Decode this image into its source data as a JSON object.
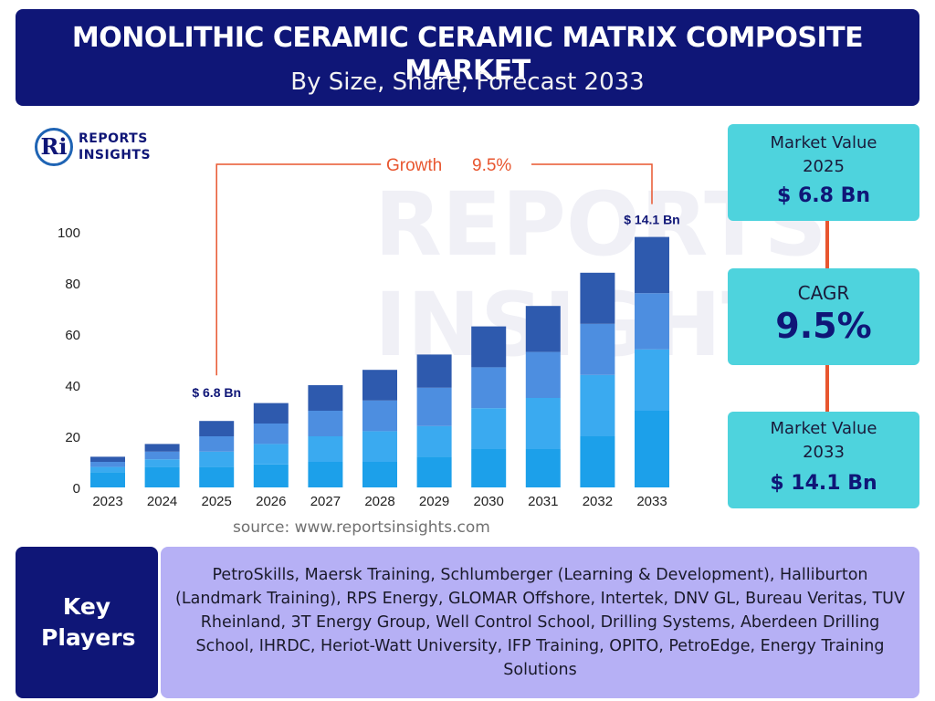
{
  "header": {
    "title": "MONOLITHIC CERAMIC CERAMIC MATRIX COMPOSITE MARKET",
    "subtitle": "By Size, Share, Forecast 2033"
  },
  "logo": {
    "mark": "Ri",
    "line1": "REPORTS",
    "line2": "INSIGHTS"
  },
  "watermark": {
    "line1": "REPORTS",
    "line2": "INSIGHTS"
  },
  "chart_data": {
    "type": "bar",
    "stacked": true,
    "categories": [
      "2023",
      "2024",
      "2025",
      "2026",
      "2027",
      "2028",
      "2029",
      "2030",
      "2031",
      "2032",
      "2033"
    ],
    "yticks": [
      0,
      20,
      40,
      60,
      80,
      100
    ],
    "ylim": [
      0,
      100
    ],
    "grid": false,
    "totals": [
      12,
      17,
      26,
      33,
      40,
      46,
      52,
      63,
      71,
      84,
      98
    ],
    "series": [
      {
        "values": [
          6,
          8,
          8,
          9,
          10,
          10,
          12,
          15,
          15,
          20,
          30
        ],
        "color": "#1ca0ea"
      },
      {
        "values": [
          2,
          3,
          6,
          8,
          10,
          12,
          12,
          16,
          20,
          24,
          24
        ],
        "color": "#3aaaf0"
      },
      {
        "values": [
          2,
          3,
          6,
          8,
          10,
          12,
          15,
          16,
          18,
          20,
          22
        ],
        "color": "#4d8ee0"
      },
      {
        "values": [
          2,
          3,
          6,
          8,
          10,
          12,
          13,
          16,
          18,
          20,
          22
        ],
        "color": "#2e5aae"
      }
    ],
    "annotations": [
      {
        "category": "2025",
        "text": "$ 6.8 Bn"
      },
      {
        "category": "2033",
        "text": "$ 14.1 Bn"
      }
    ],
    "growth_label": "Growth",
    "growth_value": "9.5%",
    "accent_color": "#e8562f"
  },
  "source": "source: www.reportsinsights.com",
  "stats": {
    "box1_label": "Market Value 2025",
    "box1_value": "$ 6.8 Bn",
    "box2_label": "CAGR",
    "box2_value": "9.5%",
    "box3_label": "Market Value 2033",
    "box3_value": "$ 14.1 Bn"
  },
  "key_players": {
    "label": "Key Players",
    "text": "PetroSkills, Maersk Training, Schlumberger (Learning & Development), Halliburton (Landmark Training), RPS Energy, GLOMAR Offshore, Intertek, DNV GL, Bureau Veritas, TUV Rheinland, 3T Energy Group, Well Control School, Drilling Systems, Aberdeen Drilling School, IHRDC, Heriot-Watt University, IFP Training, OPITO, PetroEdge, Energy Training Solutions"
  }
}
